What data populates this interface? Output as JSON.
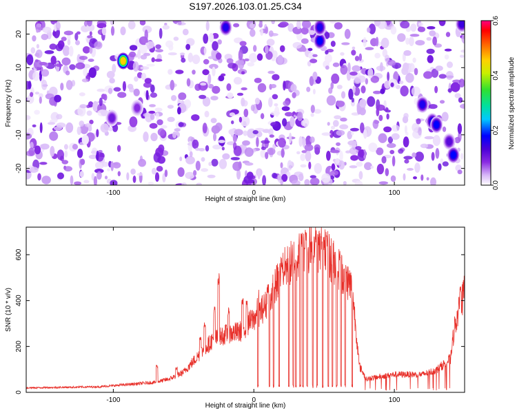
{
  "title": "S197.2026.103.01.25.C34",
  "chart_data": [
    {
      "type": "heatmap",
      "xlabel": "Height of straight line (km)",
      "ylabel": "Frequency (Hz)",
      "xlim": [
        -162,
        150
      ],
      "ylim": [
        -25,
        24
      ],
      "xticks": [
        -100,
        0,
        100
      ],
      "xtick_labels": [
        "-100",
        "0",
        "100"
      ],
      "yticks": [
        -20,
        -10,
        0,
        10,
        20
      ],
      "ytick_labels": [
        "-20",
        "-10",
        "0",
        "10",
        "20"
      ],
      "colorbar": {
        "label": "Normalized spectral amplitude",
        "range": [
          0.0,
          0.6
        ],
        "ticks": [
          0.0,
          0.2,
          0.4,
          0.6
        ],
        "tick_labels": [
          "0.0",
          "0.2",
          "0.4",
          "0.6"
        ],
        "colors": [
          "#ffffff",
          "#d8b8f8",
          "#8a2be2",
          "#4b00d8",
          "#0000ff",
          "#00c8ff",
          "#00e0a0",
          "#30e030",
          "#c8f000",
          "#ffd000",
          "#ff6000",
          "#ff0000",
          "#ff0080"
        ]
      },
      "gaps_x": [
        -94,
        -90,
        -20,
        48,
        122,
        142
      ],
      "hot_spots": [
        {
          "x": -93,
          "y": 12,
          "amp": 0.45
        },
        {
          "x": -20,
          "y": 22,
          "amp": 0.18
        },
        {
          "x": 47,
          "y": 18,
          "amp": 0.2
        },
        {
          "x": 47,
          "y": 22,
          "amp": 0.18
        },
        {
          "x": 120,
          "y": -1,
          "amp": 0.18
        },
        {
          "x": 127,
          "y": -6,
          "amp": 0.18
        },
        {
          "x": 130,
          "y": -7,
          "amp": 0.2
        },
        {
          "x": 139,
          "y": -12,
          "amp": 0.14
        },
        {
          "x": 142,
          "y": -16,
          "amp": 0.2
        },
        {
          "x": 148,
          "y": 23,
          "amp": 0.16
        },
        {
          "x": -101,
          "y": -5,
          "amp": 0.12
        },
        {
          "x": -83,
          "y": -2,
          "amp": 0.1
        }
      ]
    },
    {
      "type": "line",
      "xlabel": "Height of straight line (km)",
      "ylabel": "SNR (10 * v/v)",
      "xlim": [
        -162,
        150
      ],
      "ylim": [
        0,
        720
      ],
      "xticks": [
        -100,
        0,
        100
      ],
      "xtick_labels": [
        "-100",
        "0",
        "100"
      ],
      "yticks": [
        0,
        200,
        400,
        600
      ],
      "ytick_labels": [
        "0",
        "200",
        "400",
        "600"
      ],
      "series": [
        {
          "name": "SNR",
          "color": "#e8302a",
          "envelope_x": [
            -162,
            -110,
            -90,
            -70,
            -60,
            -50,
            -40,
            -30,
            -20,
            -10,
            0,
            10,
            20,
            30,
            40,
            50,
            60,
            70,
            75,
            80,
            100,
            120,
            130,
            140,
            143,
            150
          ],
          "envelope_y": [
            20,
            25,
            35,
            45,
            60,
            90,
            160,
            230,
            260,
            270,
            330,
            400,
            540,
            600,
            650,
            630,
            560,
            470,
            120,
            60,
            80,
            80,
            100,
            150,
            300,
            450
          ],
          "spikes": [
            {
              "x": -69,
              "y": 120
            },
            {
              "x": -55,
              "y": 110
            },
            {
              "x": -38,
              "y": 250
            },
            {
              "x": -35,
              "y": 310
            },
            {
              "x": -28,
              "y": 380
            },
            {
              "x": -25,
              "y": 520
            },
            {
              "x": -18,
              "y": 370
            },
            {
              "x": -8,
              "y": 410
            },
            {
              "x": -5,
              "y": 400
            },
            {
              "x": 3,
              "y": 450
            },
            {
              "x": 10,
              "y": 480
            },
            {
              "x": 20,
              "y": 570
            },
            {
              "x": 34,
              "y": 700
            },
            {
              "x": 37,
              "y": 720
            },
            {
              "x": 44,
              "y": 700
            },
            {
              "x": 48,
              "y": 690
            },
            {
              "x": 52,
              "y": 690
            },
            {
              "x": 61,
              "y": 620
            },
            {
              "x": 147,
              "y": 480
            }
          ],
          "drops": [
            3,
            11,
            14,
            18,
            25,
            28,
            30,
            33,
            35,
            38,
            42,
            45,
            49,
            53,
            56,
            59,
            62,
            65,
            70
          ]
        }
      ]
    }
  ]
}
